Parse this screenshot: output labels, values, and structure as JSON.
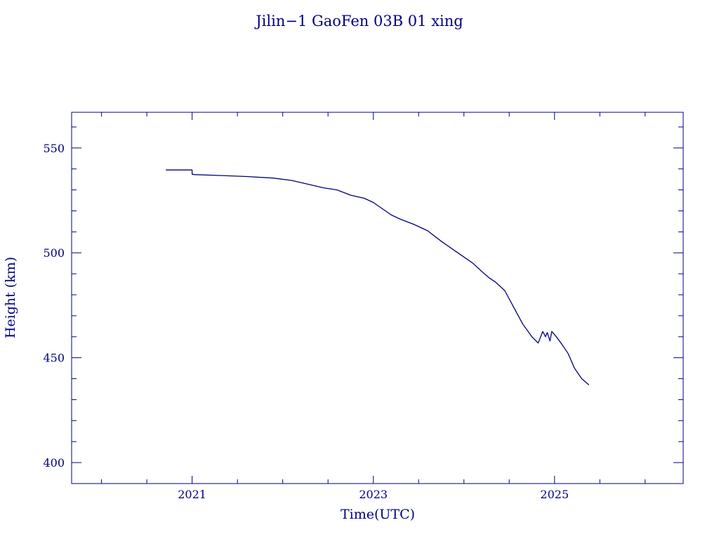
{
  "chart_data": {
    "type": "line",
    "title": "Jilin−1 GaoFen 03B 01 xing",
    "xlabel": "Time(UTC)",
    "ylabel": "Height (km)",
    "xlim": [
      2019.67,
      2026.42
    ],
    "ylim": [
      390,
      567
    ],
    "x_major_ticks": [
      2021,
      2023,
      2025
    ],
    "x_minor_step": 0.5,
    "y_major_ticks": [
      400,
      450,
      500,
      550
    ],
    "y_minor_step": 10,
    "grid": false,
    "color": "#00007f",
    "series": [
      {
        "x": [
          2020.71,
          2021.0,
          2021.0,
          2021.03,
          2021.3,
          2021.6,
          2021.9,
          2022.1,
          2022.3,
          2022.45,
          2022.6,
          2022.75,
          2022.9,
          2023.0,
          2023.1,
          2023.2,
          2023.3,
          2023.45,
          2023.6,
          2023.75,
          2023.9,
          2024.0,
          2024.1,
          2024.2,
          2024.28,
          2024.35,
          2024.45,
          2024.55,
          2024.65,
          2024.75,
          2024.82,
          2024.87,
          2024.9,
          2024.92,
          2024.95,
          2024.97,
          2025.0,
          2025.02,
          2025.08,
          2025.15,
          2025.22,
          2025.3,
          2025.38
        ],
        "y": [
          539.5,
          539.5,
          537.5,
          537.3,
          536.9,
          536.4,
          535.6,
          534.5,
          532.5,
          531.0,
          530.0,
          527.5,
          526.0,
          524.0,
          521.0,
          518.0,
          516.0,
          513.5,
          510.5,
          505.5,
          501.0,
          498.0,
          495.0,
          491.0,
          488.0,
          486.0,
          482.0,
          474.0,
          466.0,
          460.0,
          457.0,
          462.5,
          460.0,
          462.0,
          458.0,
          462.5,
          461.0,
          460.0,
          456.5,
          452.0,
          445.0,
          440.0,
          437.0
        ]
      }
    ]
  }
}
